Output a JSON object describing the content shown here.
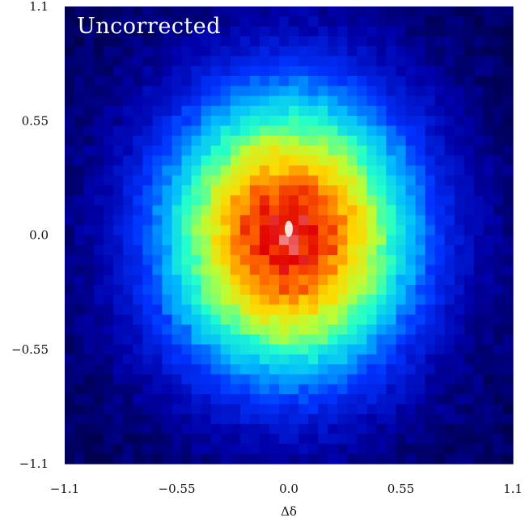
{
  "chart_data": {
    "type": "heatmap",
    "title": "Uncorrected",
    "xlabel": "Δδ",
    "ylabel": "",
    "xlim": [
      -1.1,
      1.1
    ],
    "ylim": [
      -1.1,
      1.1
    ],
    "x_ticks": [
      {
        "value": -1.1,
        "label": "−1.1"
      },
      {
        "value": -0.55,
        "label": "−0.55"
      },
      {
        "value": 0.0,
        "label": "0.0"
      },
      {
        "value": 0.55,
        "label": "0.55"
      },
      {
        "value": 1.1,
        "label": "1.1"
      }
    ],
    "y_ticks": [
      {
        "value": -1.1,
        "label": "−1.1"
      },
      {
        "value": -0.55,
        "label": "−0.55"
      },
      {
        "value": 0.0,
        "label": "0.0"
      },
      {
        "value": 0.55,
        "label": "0.55"
      },
      {
        "value": 1.1,
        "label": "1.1"
      }
    ],
    "distribution": {
      "shape": "2d-gaussian",
      "center": [
        0.0,
        0.0
      ],
      "sigma_x": 0.3,
      "sigma_y": 0.33,
      "peak_density": 1.0
    },
    "colormap": [
      "#000010",
      "#0000a8",
      "#0033ff",
      "#00b8ff",
      "#22ffcc",
      "#b8ff38",
      "#ffd800",
      "#ff6a00",
      "#e00000",
      "#ffffff"
    ],
    "grid": false,
    "legend": "none"
  }
}
